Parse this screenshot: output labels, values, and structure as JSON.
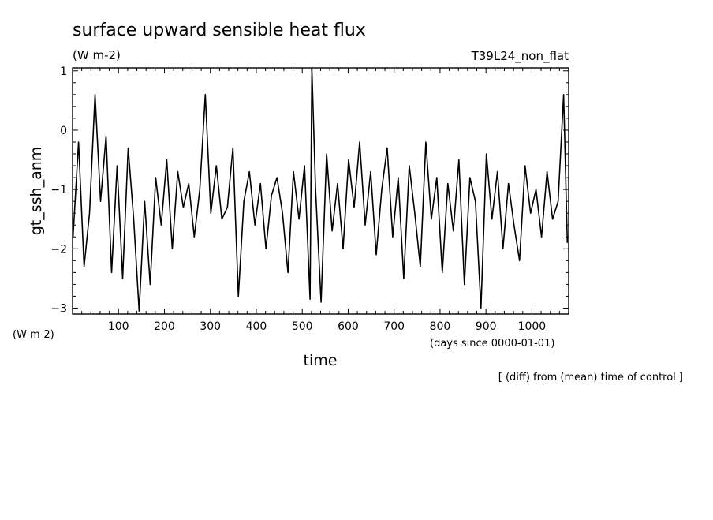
{
  "chart_data": {
    "type": "line",
    "title": "surface upward sensible heat flux",
    "units": "(W m-2)",
    "experiment": "T39L24_non_flat",
    "ylabel": "gt_ssh_anm",
    "yunits": "(W m-2)",
    "xlabel": "time",
    "xunits": "(days since 0000-01-01)",
    "note": "[ (diff) from (mean) time of control ]",
    "xlim": [
      0,
      1080
    ],
    "ylim": [
      -3.1,
      1.05
    ],
    "xticks": [
      100,
      200,
      300,
      400,
      500,
      600,
      700,
      800,
      900,
      1000
    ],
    "yticks": [
      1,
      0,
      -1,
      -2,
      -3
    ],
    "series": [
      {
        "x": [
          1,
          13,
          25,
          37,
          49,
          61,
          73,
          85,
          97,
          109,
          121,
          133,
          145,
          157,
          169,
          181,
          193,
          205,
          217,
          229,
          241,
          253,
          265,
          277,
          289,
          301,
          313,
          325,
          337,
          349,
          361,
          373,
          385,
          397,
          409,
          421,
          433,
          445,
          457,
          469,
          481,
          493,
          505,
          517,
          521,
          529,
          541,
          553,
          565,
          577,
          589,
          601,
          613,
          625,
          637,
          649,
          661,
          673,
          685,
          697,
          709,
          721,
          733,
          745,
          757,
          769,
          781,
          793,
          805,
          817,
          829,
          841,
          853,
          865,
          877,
          889,
          901,
          913,
          925,
          937,
          949,
          961,
          973,
          985,
          997,
          1009,
          1021,
          1033,
          1045,
          1057,
          1069,
          1077
        ],
        "y": [
          -1.8,
          -0.2,
          -2.3,
          -1.4,
          0.6,
          -1.2,
          -0.1,
          -2.4,
          -0.6,
          -2.5,
          -0.3,
          -1.5,
          -3.05,
          -1.2,
          -2.6,
          -0.8,
          -1.6,
          -0.5,
          -2.0,
          -0.7,
          -1.3,
          -0.9,
          -1.8,
          -1.0,
          0.6,
          -1.4,
          -0.6,
          -1.5,
          -1.3,
          -0.3,
          -2.8,
          -1.2,
          -0.7,
          -1.6,
          -0.9,
          -2.0,
          -1.1,
          -0.8,
          -1.4,
          -2.4,
          -0.7,
          -1.5,
          -0.6,
          -2.85,
          1.05,
          -1.0,
          -2.9,
          -0.4,
          -1.7,
          -0.9,
          -2.0,
          -0.5,
          -1.3,
          -0.2,
          -1.6,
          -0.7,
          -2.1,
          -1.0,
          -0.3,
          -1.8,
          -0.8,
          -2.5,
          -0.6,
          -1.4,
          -2.3,
          -0.2,
          -1.5,
          -0.8,
          -2.4,
          -0.9,
          -1.7,
          -0.5,
          -2.6,
          -0.8,
          -1.2,
          -3.0,
          -0.4,
          -1.5,
          -0.7,
          -2.0,
          -0.9,
          -1.6,
          -2.2,
          -0.6,
          -1.4,
          -1.0,
          -1.8,
          -0.7,
          -1.5,
          -1.2,
          0.6,
          -1.9
        ]
      }
    ]
  }
}
